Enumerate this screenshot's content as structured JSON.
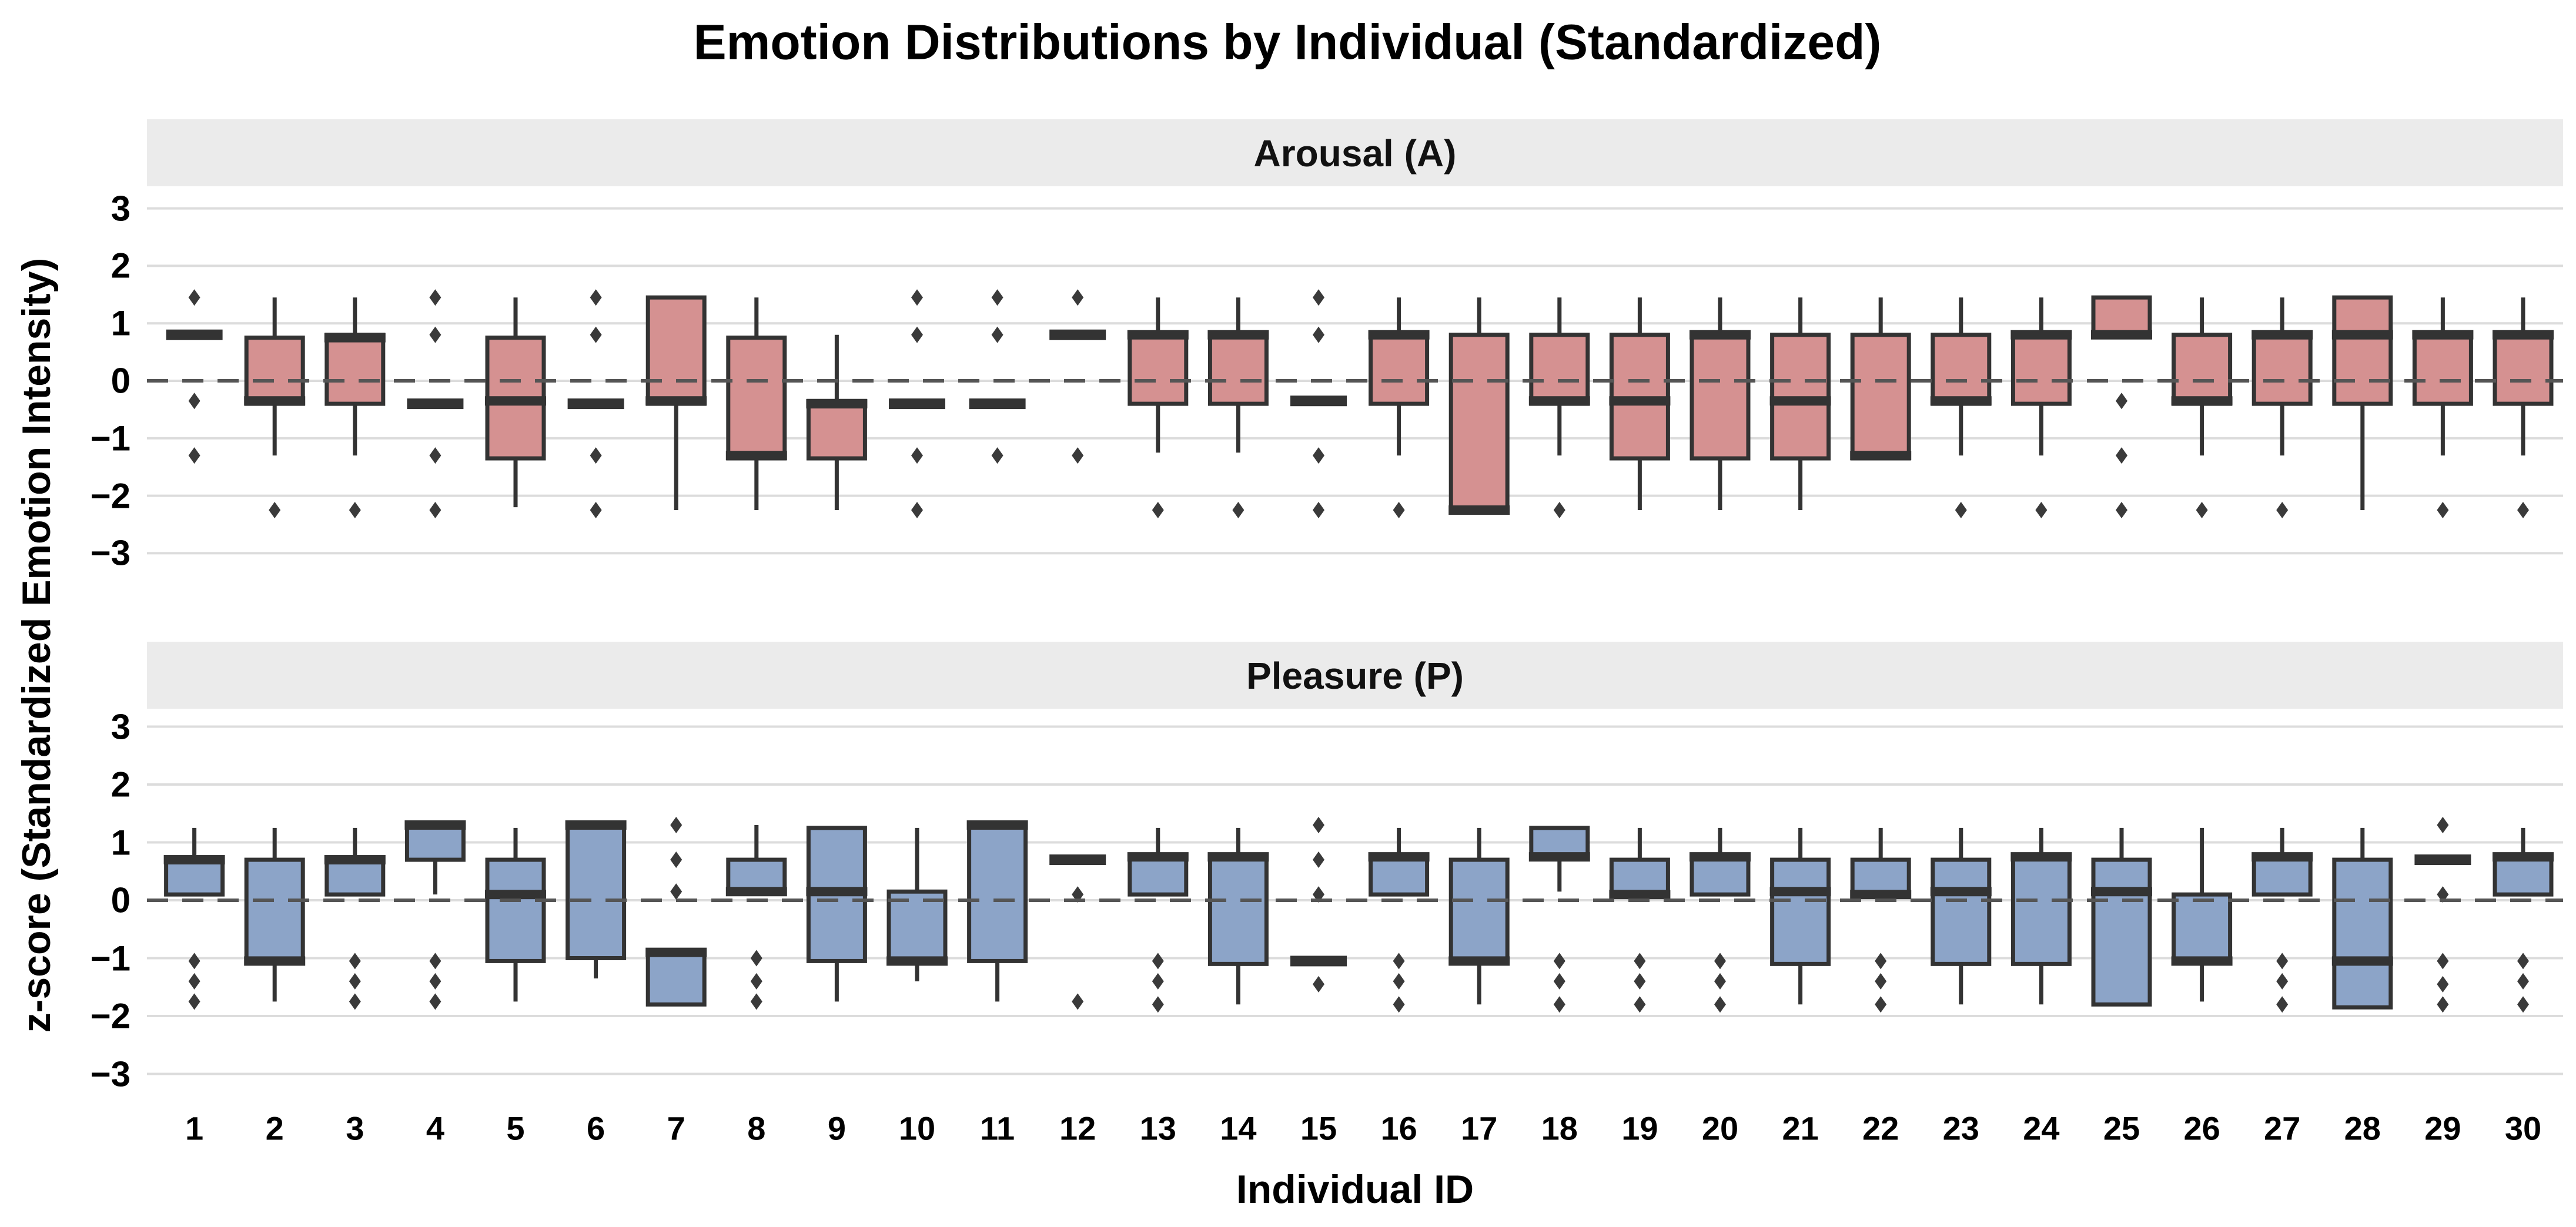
{
  "title": "Emotion Distributions by Individual (Standardized)",
  "x_label": "Individual ID",
  "y_label": "z-score (Standardized Emotion Intensity)",
  "colors": {
    "arousal_fill": "#D59191",
    "pleasure_fill": "#8CA4C8",
    "box_border": "#333333",
    "median": "#333333",
    "outlier": "#3A3A3A",
    "gridline": "#DCDCDC",
    "zero_line": "#555555",
    "strip_bg": "#EBEBEB",
    "panel_bg": "#FFFFFF",
    "text": "#000000"
  },
  "chart_data": [
    {
      "type": "box",
      "facet_label": "Arousal (A)",
      "fill_key": "arousal_fill",
      "ylim": [
        -3.5,
        3.5
      ],
      "y_tick_values": [
        3,
        2,
        1,
        0,
        -1,
        -2,
        -3
      ],
      "y_tick_labels": [
        "3",
        "2",
        "1",
        "0",
        "−1",
        "−2",
        "−3"
      ],
      "zero_reference_line": 0,
      "grid": true,
      "boxes": [
        {
          "id": 1,
          "q1": 0.8,
          "med": 0.8,
          "q3": 0.8,
          "lo": 0.8,
          "hi": 0.8,
          "out": [
            1.45,
            -0.35,
            -1.3
          ]
        },
        {
          "id": 2,
          "q1": -0.4,
          "med": -0.35,
          "q3": 0.75,
          "lo": -1.3,
          "hi": 1.45,
          "out": [
            -2.25
          ]
        },
        {
          "id": 3,
          "q1": -0.4,
          "med": 0.75,
          "q3": 0.8,
          "lo": -1.3,
          "hi": 1.45,
          "out": [
            -2.25
          ]
        },
        {
          "id": 4,
          "q1": -0.4,
          "med": -0.4,
          "q3": -0.4,
          "lo": -0.4,
          "hi": -0.4,
          "out": [
            1.45,
            0.8,
            -1.3,
            -2.25
          ]
        },
        {
          "id": 5,
          "q1": -1.35,
          "med": -0.35,
          "q3": 0.75,
          "lo": -2.2,
          "hi": 1.45,
          "out": []
        },
        {
          "id": 6,
          "q1": -0.4,
          "med": -0.4,
          "q3": -0.4,
          "lo": -0.4,
          "hi": -0.4,
          "out": [
            1.45,
            0.8,
            -1.3,
            -2.25
          ]
        },
        {
          "id": 7,
          "q1": -0.4,
          "med": -0.35,
          "q3": 1.45,
          "lo": -2.25,
          "hi": 1.45,
          "out": []
        },
        {
          "id": 8,
          "q1": -1.35,
          "med": -1.3,
          "q3": 0.75,
          "lo": -2.25,
          "hi": 1.45,
          "out": []
        },
        {
          "id": 9,
          "q1": -1.35,
          "med": -0.4,
          "q3": -0.35,
          "lo": -2.25,
          "hi": 0.8,
          "out": []
        },
        {
          "id": 10,
          "q1": -0.4,
          "med": -0.4,
          "q3": -0.4,
          "lo": -0.4,
          "hi": -0.4,
          "out": [
            1.45,
            0.8,
            -1.3,
            -2.25
          ]
        },
        {
          "id": 11,
          "q1": -0.4,
          "med": -0.4,
          "q3": -0.4,
          "lo": -0.4,
          "hi": -0.4,
          "out": [
            1.45,
            0.8,
            -1.3
          ]
        },
        {
          "id": 12,
          "q1": 0.8,
          "med": 0.8,
          "q3": 0.8,
          "lo": 0.8,
          "hi": 0.8,
          "out": [
            1.45,
            -1.3
          ]
        },
        {
          "id": 13,
          "q1": -0.4,
          "med": 0.8,
          "q3": 0.8,
          "lo": -1.25,
          "hi": 1.45,
          "out": [
            -2.25
          ]
        },
        {
          "id": 14,
          "q1": -0.4,
          "med": 0.8,
          "q3": 0.8,
          "lo": -1.25,
          "hi": 1.45,
          "out": [
            -2.25
          ]
        },
        {
          "id": 15,
          "q1": -0.35,
          "med": -0.35,
          "q3": -0.35,
          "lo": -0.35,
          "hi": -0.35,
          "out": [
            1.45,
            0.8,
            -1.3,
            -2.25
          ]
        },
        {
          "id": 16,
          "q1": -0.4,
          "med": 0.8,
          "q3": 0.8,
          "lo": -1.3,
          "hi": 1.45,
          "out": [
            -2.25
          ]
        },
        {
          "id": 17,
          "q1": -2.25,
          "med": -2.25,
          "q3": 0.8,
          "lo": -2.25,
          "hi": 1.45,
          "out": []
        },
        {
          "id": 18,
          "q1": -0.4,
          "med": -0.35,
          "q3": 0.8,
          "lo": -1.3,
          "hi": 1.45,
          "out": [
            -2.25
          ]
        },
        {
          "id": 19,
          "q1": -1.35,
          "med": -0.35,
          "q3": 0.8,
          "lo": -2.25,
          "hi": 1.45,
          "out": []
        },
        {
          "id": 20,
          "q1": -1.35,
          "med": 0.8,
          "q3": 0.8,
          "lo": -2.25,
          "hi": 1.45,
          "out": []
        },
        {
          "id": 21,
          "q1": -1.35,
          "med": -0.35,
          "q3": 0.8,
          "lo": -2.25,
          "hi": 1.45,
          "out": []
        },
        {
          "id": 22,
          "q1": -1.35,
          "med": -1.3,
          "q3": 0.8,
          "lo": -1.35,
          "hi": 1.45,
          "out": []
        },
        {
          "id": 23,
          "q1": -0.4,
          "med": -0.35,
          "q3": 0.8,
          "lo": -1.3,
          "hi": 1.45,
          "out": [
            -2.25
          ]
        },
        {
          "id": 24,
          "q1": -0.4,
          "med": 0.8,
          "q3": 0.8,
          "lo": -1.3,
          "hi": 1.45,
          "out": [
            -2.25
          ]
        },
        {
          "id": 25,
          "q1": 0.8,
          "med": 0.8,
          "q3": 1.45,
          "lo": 0.8,
          "hi": 1.45,
          "out": [
            -0.35,
            -1.3,
            -2.25
          ]
        },
        {
          "id": 26,
          "q1": -0.4,
          "med": -0.35,
          "q3": 0.8,
          "lo": -1.3,
          "hi": 1.45,
          "out": [
            -2.25
          ]
        },
        {
          "id": 27,
          "q1": -0.4,
          "med": 0.8,
          "q3": 0.8,
          "lo": -1.3,
          "hi": 1.45,
          "out": [
            -2.25
          ]
        },
        {
          "id": 28,
          "q1": -0.4,
          "med": 0.8,
          "q3": 1.45,
          "lo": -2.25,
          "hi": 1.45,
          "out": []
        },
        {
          "id": 29,
          "q1": -0.4,
          "med": 0.8,
          "q3": 0.8,
          "lo": -1.3,
          "hi": 1.45,
          "out": [
            -2.25
          ]
        },
        {
          "id": 30,
          "q1": -0.4,
          "med": 0.8,
          "q3": 0.8,
          "lo": -1.3,
          "hi": 1.45,
          "out": [
            -2.25
          ]
        }
      ]
    },
    {
      "type": "box",
      "facet_label": "Pleasure (P)",
      "fill_key": "pleasure_fill",
      "ylim": [
        -3.5,
        3.5
      ],
      "y_tick_values": [
        3,
        2,
        1,
        0,
        -1,
        -2,
        -3
      ],
      "y_tick_labels": [
        "3",
        "2",
        "1",
        "0",
        "−1",
        "−2",
        "−3"
      ],
      "zero_reference_line": 0,
      "grid": true,
      "boxes": [
        {
          "id": 1,
          "q1": 0.1,
          "med": 0.7,
          "q3": 0.7,
          "lo": 0.1,
          "hi": 1.25,
          "out": [
            -1.05,
            -1.4,
            -1.75
          ]
        },
        {
          "id": 2,
          "q1": -1.05,
          "med": -1.05,
          "q3": 0.7,
          "lo": -1.75,
          "hi": 1.25,
          "out": []
        },
        {
          "id": 3,
          "q1": 0.1,
          "med": 0.7,
          "q3": 0.7,
          "lo": 0.1,
          "hi": 1.25,
          "out": [
            -1.05,
            -1.4,
            -1.75
          ]
        },
        {
          "id": 4,
          "q1": 0.7,
          "med": 1.3,
          "q3": 1.3,
          "lo": 0.1,
          "hi": 1.3,
          "out": [
            -1.05,
            -1.4,
            -1.75
          ]
        },
        {
          "id": 5,
          "q1": -1.05,
          "med": 0.1,
          "q3": 0.7,
          "lo": -1.75,
          "hi": 1.25,
          "out": []
        },
        {
          "id": 6,
          "q1": -1.0,
          "med": 1.3,
          "q3": 1.3,
          "lo": -1.35,
          "hi": 1.3,
          "out": []
        },
        {
          "id": 7,
          "q1": -1.8,
          "med": -0.9,
          "q3": -0.9,
          "lo": -1.8,
          "hi": -0.9,
          "out": [
            1.3,
            0.7,
            0.15
          ]
        },
        {
          "id": 8,
          "q1": 0.15,
          "med": 0.15,
          "q3": 0.7,
          "lo": 0.15,
          "hi": 1.3,
          "out": [
            -1.0,
            -1.4,
            -1.75
          ]
        },
        {
          "id": 9,
          "q1": -1.05,
          "med": 0.15,
          "q3": 1.25,
          "lo": -1.75,
          "hi": 1.25,
          "out": []
        },
        {
          "id": 10,
          "q1": -1.05,
          "med": -1.05,
          "q3": 0.15,
          "lo": -1.4,
          "hi": 1.25,
          "out": []
        },
        {
          "id": 11,
          "q1": -1.05,
          "med": 1.3,
          "q3": 1.3,
          "lo": -1.75,
          "hi": 1.3,
          "out": []
        },
        {
          "id": 12,
          "q1": 0.7,
          "med": 0.7,
          "q3": 0.7,
          "lo": 0.7,
          "hi": 0.7,
          "out": [
            0.1,
            -1.75
          ]
        },
        {
          "id": 13,
          "q1": 0.1,
          "med": 0.75,
          "q3": 0.75,
          "lo": 0.1,
          "hi": 1.25,
          "out": [
            -1.05,
            -1.4,
            -1.8
          ]
        },
        {
          "id": 14,
          "q1": -1.1,
          "med": 0.75,
          "q3": 0.75,
          "lo": -1.8,
          "hi": 1.25,
          "out": []
        },
        {
          "id": 15,
          "q1": -1.05,
          "med": -1.05,
          "q3": -1.05,
          "lo": -1.05,
          "hi": -1.05,
          "out": [
            1.3,
            0.7,
            0.1,
            -1.45
          ]
        },
        {
          "id": 16,
          "q1": 0.1,
          "med": 0.75,
          "q3": 0.75,
          "lo": 0.1,
          "hi": 1.25,
          "out": [
            -1.05,
            -1.4,
            -1.8
          ]
        },
        {
          "id": 17,
          "q1": -1.05,
          "med": -1.05,
          "q3": 0.7,
          "lo": -1.8,
          "hi": 1.25,
          "out": []
        },
        {
          "id": 18,
          "q1": 0.75,
          "med": 0.75,
          "q3": 1.25,
          "lo": 0.15,
          "hi": 1.25,
          "out": [
            -1.05,
            -1.4,
            -1.8
          ]
        },
        {
          "id": 19,
          "q1": 0.1,
          "med": 0.1,
          "q3": 0.7,
          "lo": 0.1,
          "hi": 1.25,
          "out": [
            -1.05,
            -1.4,
            -1.8
          ]
        },
        {
          "id": 20,
          "q1": 0.1,
          "med": 0.75,
          "q3": 0.75,
          "lo": 0.1,
          "hi": 1.25,
          "out": [
            -1.05,
            -1.4,
            -1.8
          ]
        },
        {
          "id": 21,
          "q1": -1.1,
          "med": 0.15,
          "q3": 0.7,
          "lo": -1.8,
          "hi": 1.25,
          "out": []
        },
        {
          "id": 22,
          "q1": 0.1,
          "med": 0.1,
          "q3": 0.7,
          "lo": 0.1,
          "hi": 1.25,
          "out": [
            -1.05,
            -1.4,
            -1.8
          ]
        },
        {
          "id": 23,
          "q1": -1.1,
          "med": 0.15,
          "q3": 0.7,
          "lo": -1.8,
          "hi": 1.25,
          "out": []
        },
        {
          "id": 24,
          "q1": -1.1,
          "med": 0.75,
          "q3": 0.75,
          "lo": -1.8,
          "hi": 1.25,
          "out": []
        },
        {
          "id": 25,
          "q1": -1.8,
          "med": 0.15,
          "q3": 0.7,
          "lo": -1.8,
          "hi": 1.25,
          "out": []
        },
        {
          "id": 26,
          "q1": -1.05,
          "med": -1.05,
          "q3": 0.1,
          "lo": -1.75,
          "hi": 1.25,
          "out": []
        },
        {
          "id": 27,
          "q1": 0.1,
          "med": 0.75,
          "q3": 0.75,
          "lo": 0.1,
          "hi": 1.25,
          "out": [
            -1.05,
            -1.4,
            -1.8
          ]
        },
        {
          "id": 28,
          "q1": -1.85,
          "med": -1.05,
          "q3": 0.7,
          "lo": -1.85,
          "hi": 1.25,
          "out": []
        },
        {
          "id": 29,
          "q1": 0.7,
          "med": 0.7,
          "q3": 0.7,
          "lo": 0.7,
          "hi": 0.7,
          "out": [
            1.3,
            0.1,
            -1.05,
            -1.45,
            -1.8
          ]
        },
        {
          "id": 30,
          "q1": 0.1,
          "med": 0.75,
          "q3": 0.75,
          "lo": 0.1,
          "hi": 1.25,
          "out": [
            -1.05,
            -1.4,
            -1.8
          ]
        }
      ]
    }
  ],
  "x_ticks": [
    "1",
    "2",
    "3",
    "4",
    "5",
    "6",
    "7",
    "8",
    "9",
    "10",
    "11",
    "12",
    "13",
    "14",
    "15",
    "16",
    "17",
    "18",
    "19",
    "20",
    "21",
    "22",
    "23",
    "24",
    "25",
    "26",
    "27",
    "28",
    "29",
    "30"
  ]
}
